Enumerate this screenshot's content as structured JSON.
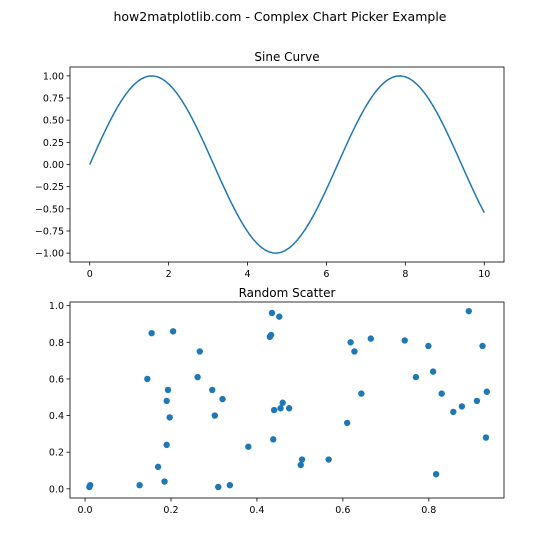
{
  "figure": {
    "suptitle": "how2matplotlib.com - Complex Chart Picker Example"
  },
  "colors": {
    "series": "#1f77b4",
    "axes": "#000000",
    "background": "#ffffff"
  },
  "chart_data": [
    {
      "type": "line",
      "title": "Sine Curve",
      "xlabel": "",
      "ylabel": "",
      "function": "sin(x)",
      "x_range": [
        0,
        10
      ],
      "sample_count": 100,
      "xlim": [
        -0.5,
        10.5
      ],
      "ylim": [
        -1.1,
        1.1
      ],
      "xticks": [
        0,
        2,
        4,
        6,
        8,
        10
      ],
      "xtick_labels": [
        "0",
        "2",
        "4",
        "6",
        "8",
        "10"
      ],
      "yticks": [
        -1.0,
        -0.75,
        -0.5,
        -0.25,
        0.0,
        0.25,
        0.5,
        0.75,
        1.0
      ],
      "ytick_labels": [
        "−1.00",
        "−0.75",
        "−0.50",
        "−0.25",
        "0.00",
        "0.25",
        "0.50",
        "0.75",
        "1.00"
      ],
      "grid": false,
      "legend": "none"
    },
    {
      "type": "scatter",
      "title": "Random Scatter",
      "xlabel": "",
      "ylabel": "",
      "xlim": [
        -0.035,
        0.975
      ],
      "ylim": [
        -0.05,
        1.02
      ],
      "xticks": [
        0.0,
        0.2,
        0.4,
        0.6,
        0.8
      ],
      "xtick_labels": [
        "0.0",
        "0.2",
        "0.4",
        "0.6",
        "0.8"
      ],
      "yticks": [
        0.0,
        0.2,
        0.4,
        0.6,
        0.8,
        1.0
      ],
      "ytick_labels": [
        "0.0",
        "0.2",
        "0.4",
        "0.6",
        "0.8",
        "1.0"
      ],
      "grid": false,
      "legend": "none",
      "points": [
        [
          0.01,
          0.01
        ],
        [
          0.012,
          0.02
        ],
        [
          0.127,
          0.02
        ],
        [
          0.145,
          0.6
        ],
        [
          0.155,
          0.85
        ],
        [
          0.17,
          0.12
        ],
        [
          0.185,
          0.04
        ],
        [
          0.19,
          0.48
        ],
        [
          0.19,
          0.24
        ],
        [
          0.193,
          0.54
        ],
        [
          0.197,
          0.39
        ],
        [
          0.205,
          0.86
        ],
        [
          0.262,
          0.61
        ],
        [
          0.267,
          0.75
        ],
        [
          0.296,
          0.54
        ],
        [
          0.302,
          0.4
        ],
        [
          0.31,
          0.01
        ],
        [
          0.32,
          0.49
        ],
        [
          0.337,
          0.02
        ],
        [
          0.38,
          0.23
        ],
        [
          0.43,
          0.83
        ],
        [
          0.433,
          0.84
        ],
        [
          0.435,
          0.96
        ],
        [
          0.438,
          0.27
        ],
        [
          0.44,
          0.43
        ],
        [
          0.452,
          0.94
        ],
        [
          0.455,
          0.44
        ],
        [
          0.46,
          0.47
        ],
        [
          0.475,
          0.44
        ],
        [
          0.502,
          0.13
        ],
        [
          0.505,
          0.16
        ],
        [
          0.567,
          0.16
        ],
        [
          0.61,
          0.36
        ],
        [
          0.618,
          0.8
        ],
        [
          0.627,
          0.75
        ],
        [
          0.643,
          0.52
        ],
        [
          0.665,
          0.82
        ],
        [
          0.744,
          0.81
        ],
        [
          0.77,
          0.61
        ],
        [
          0.799,
          0.78
        ],
        [
          0.81,
          0.64
        ],
        [
          0.817,
          0.08
        ],
        [
          0.83,
          0.52
        ],
        [
          0.857,
          0.42
        ],
        [
          0.877,
          0.45
        ],
        [
          0.893,
          0.97
        ],
        [
          0.912,
          0.48
        ],
        [
          0.925,
          0.78
        ],
        [
          0.933,
          0.28
        ],
        [
          0.935,
          0.53
        ]
      ]
    }
  ]
}
